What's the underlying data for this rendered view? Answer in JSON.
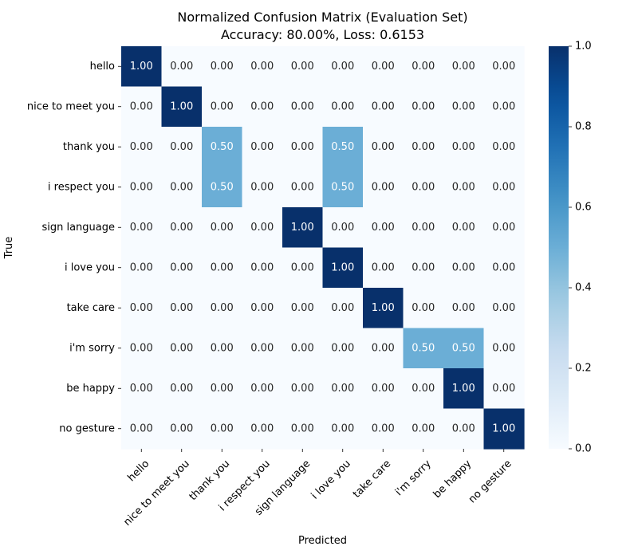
{
  "chart_data": {
    "type": "heatmap",
    "title": "Normalized Confusion Matrix (Evaluation Set)",
    "subtitle": "Accuracy: 80.00%, Loss: 0.6153",
    "xlabel": "Predicted",
    "ylabel": "True",
    "row_labels": [
      "hello",
      "nice to meet you",
      "thank you",
      "i respect you",
      "sign language",
      "i love you",
      "take care",
      "i'm sorry",
      "be happy",
      "no gesture"
    ],
    "col_labels": [
      "hello",
      "nice to meet you",
      "thank you",
      "i respect you",
      "sign language",
      "i love you",
      "take care",
      "i'm sorry",
      "be happy",
      "no gesture"
    ],
    "values": [
      [
        1.0,
        0.0,
        0.0,
        0.0,
        0.0,
        0.0,
        0.0,
        0.0,
        0.0,
        0.0
      ],
      [
        0.0,
        1.0,
        0.0,
        0.0,
        0.0,
        0.0,
        0.0,
        0.0,
        0.0,
        0.0
      ],
      [
        0.0,
        0.0,
        0.5,
        0.0,
        0.0,
        0.5,
        0.0,
        0.0,
        0.0,
        0.0
      ],
      [
        0.0,
        0.0,
        0.5,
        0.0,
        0.0,
        0.5,
        0.0,
        0.0,
        0.0,
        0.0
      ],
      [
        0.0,
        0.0,
        0.0,
        0.0,
        1.0,
        0.0,
        0.0,
        0.0,
        0.0,
        0.0
      ],
      [
        0.0,
        0.0,
        0.0,
        0.0,
        0.0,
        1.0,
        0.0,
        0.0,
        0.0,
        0.0
      ],
      [
        0.0,
        0.0,
        0.0,
        0.0,
        0.0,
        0.0,
        1.0,
        0.0,
        0.0,
        0.0
      ],
      [
        0.0,
        0.0,
        0.0,
        0.0,
        0.0,
        0.0,
        0.0,
        0.5,
        0.5,
        0.0
      ],
      [
        0.0,
        0.0,
        0.0,
        0.0,
        0.0,
        0.0,
        0.0,
        0.0,
        1.0,
        0.0
      ],
      [
        0.0,
        0.0,
        0.0,
        0.0,
        0.0,
        0.0,
        0.0,
        0.0,
        0.0,
        1.0
      ]
    ],
    "value_format": "2 decimals",
    "colormap": "Blues",
    "colorbar": {
      "range": [
        0.0,
        1.0
      ],
      "ticks": [
        "0.0",
        "0.2",
        "0.4",
        "0.6",
        "0.8",
        "1.0"
      ]
    },
    "colors": {
      "min": "#f7fbff",
      "mid": "#6baed6",
      "max": "#08306b",
      "text_dark": "#262626",
      "text_light": "#ffffff"
    },
    "grid": false
  }
}
